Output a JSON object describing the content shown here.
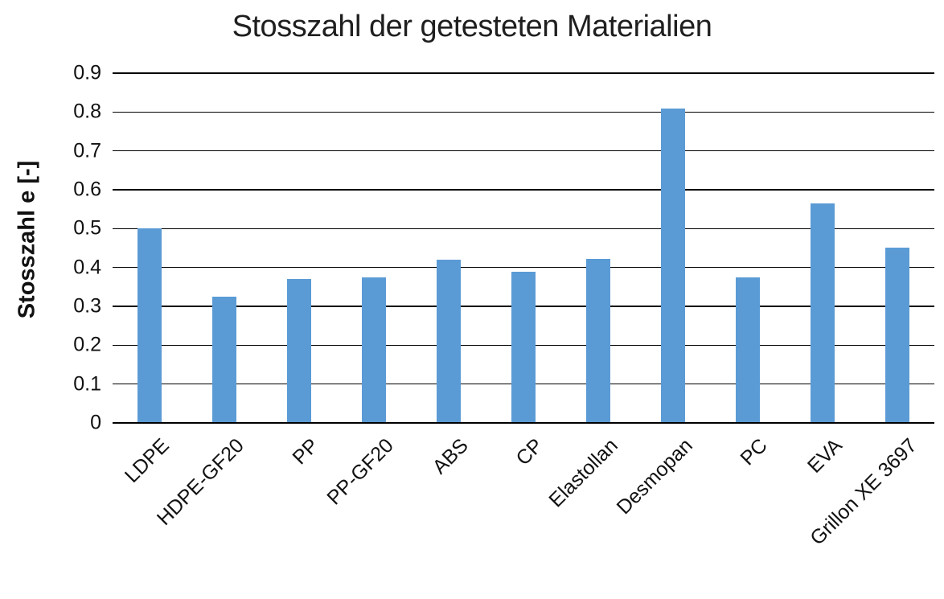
{
  "chart_data": {
    "type": "bar",
    "title": "Stosszahl der getesteten Materialien",
    "ylabel": "Stosszahl e [-]",
    "xlabel": "",
    "categories": [
      "LDPE",
      "HDPE-GF20",
      "PP",
      "PP-GF20",
      "ABS",
      "CP",
      "Elastollan",
      "Desmopan",
      "PC",
      "EVA",
      "Grillon XE 3697"
    ],
    "values": [
      0.5,
      0.325,
      0.37,
      0.375,
      0.42,
      0.39,
      0.422,
      0.81,
      0.375,
      0.565,
      0.452
    ],
    "ylim": [
      0,
      0.9
    ],
    "ytick_step": 0.1,
    "yticks": [
      "0",
      "0.1",
      "0.2",
      "0.3",
      "0.4",
      "0.5",
      "0.6",
      "0.7",
      "0.8",
      "0.9"
    ],
    "grid": "horizontal",
    "legend": "none",
    "bar_color": "#5B9BD5",
    "background_color": "#ffffff",
    "axis_color": "#000000"
  }
}
